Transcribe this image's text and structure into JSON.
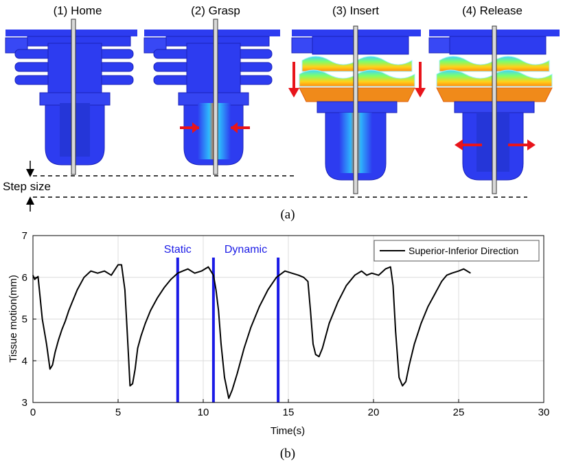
{
  "panel_a": {
    "stage_titles": [
      "(1) Home",
      "(2) Grasp",
      "(3) Insert",
      "(4) Release"
    ],
    "step_label": "Step size",
    "caption": "(a)",
    "colors": {
      "body": "#2d3cf0",
      "body_dark": "#1a22b8",
      "arrow": "#e8141b",
      "needle": "#d9d9d9"
    }
  },
  "panel_b": {
    "caption": "(b)"
  },
  "chart_data": {
    "type": "line",
    "xlabel": "Time(s)",
    "ylabel": "Tissue motion(mm)",
    "xlim": [
      0,
      30
    ],
    "ylim": [
      3,
      7
    ],
    "xticks": [
      0,
      5,
      10,
      15,
      20,
      25,
      30
    ],
    "yticks": [
      3,
      4,
      5,
      6,
      7
    ],
    "grid": true,
    "legend": "top-right",
    "series": [
      {
        "name": "Superior-Inferior Direction",
        "color": "#000000",
        "x": [
          0.0,
          0.1,
          0.3,
          0.55,
          0.8,
          1.0,
          1.15,
          1.3,
          1.5,
          1.7,
          1.9,
          2.1,
          2.3,
          2.6,
          3.0,
          3.4,
          3.8,
          4.2,
          4.6,
          5.0,
          5.2,
          5.4,
          5.55,
          5.7,
          5.85,
          6.0,
          6.15,
          6.35,
          6.6,
          6.9,
          7.3,
          7.7,
          8.1,
          8.5,
          8.8,
          9.1,
          9.5,
          9.9,
          10.3,
          10.6,
          10.75,
          10.9,
          11.05,
          11.25,
          11.5,
          11.7,
          12.0,
          12.4,
          12.8,
          13.3,
          13.8,
          14.3,
          14.8,
          15.2,
          15.6,
          15.9,
          16.15,
          16.3,
          16.45,
          16.6,
          16.8,
          17.0,
          17.4,
          17.9,
          18.4,
          18.9,
          19.3,
          19.6,
          19.9,
          20.3,
          20.7,
          21.0,
          21.15,
          21.3,
          21.5,
          21.7,
          21.9,
          22.1,
          22.4,
          22.8,
          23.2,
          23.6,
          24.0,
          24.3,
          24.6,
          25.0,
          25.3,
          25.5,
          25.7
        ],
        "y": [
          6.05,
          5.95,
          6.02,
          5.0,
          4.4,
          3.8,
          3.9,
          4.2,
          4.5,
          4.75,
          4.95,
          5.2,
          5.4,
          5.7,
          6.0,
          6.15,
          6.1,
          6.15,
          6.05,
          6.3,
          6.3,
          5.7,
          4.6,
          3.4,
          3.45,
          3.8,
          4.3,
          4.6,
          4.9,
          5.2,
          5.5,
          5.75,
          5.95,
          6.1,
          6.15,
          6.2,
          6.1,
          6.15,
          6.25,
          6.05,
          5.7,
          5.2,
          4.4,
          3.6,
          3.1,
          3.3,
          3.7,
          4.3,
          4.8,
          5.3,
          5.7,
          6.0,
          6.15,
          6.1,
          6.05,
          6.0,
          5.9,
          5.2,
          4.4,
          4.15,
          4.1,
          4.3,
          4.9,
          5.4,
          5.8,
          6.05,
          6.15,
          6.05,
          6.1,
          6.05,
          6.2,
          6.25,
          5.8,
          4.7,
          3.6,
          3.4,
          3.5,
          3.9,
          4.4,
          4.9,
          5.3,
          5.6,
          5.9,
          6.05,
          6.1,
          6.15,
          6.2,
          6.15,
          6.1
        ]
      }
    ],
    "markers": {
      "color": "#1a1ae6",
      "x": [
        8.5,
        10.6,
        14.4
      ],
      "labels": [
        {
          "text": "Static",
          "x": 8.5
        },
        {
          "text": "Dynamic",
          "x": 12.5
        }
      ]
    }
  }
}
